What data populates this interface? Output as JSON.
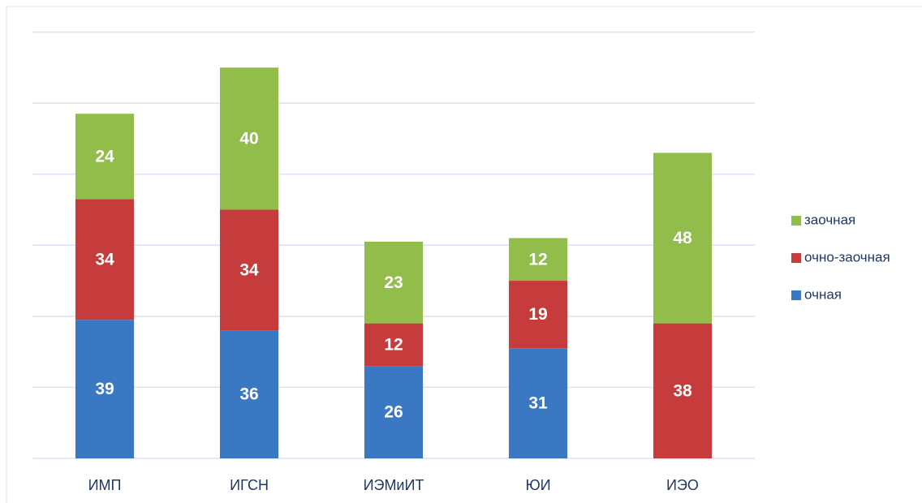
{
  "chart_data": {
    "type": "stacked_bar",
    "categories": [
      "ИМП",
      "ИГСН",
      "ИЭМиИТ",
      "ЮИ",
      "ИЭО"
    ],
    "series": [
      {
        "name": "очная",
        "color": "#3a78c4",
        "values": [
          39,
          36,
          26,
          31,
          null
        ]
      },
      {
        "name": "очно-заочная",
        "color": "#c63c3c",
        "values": [
          34,
          34,
          12,
          19,
          38
        ]
      },
      {
        "name": "заочная",
        "color": "#92bd4a",
        "values": [
          24,
          40,
          23,
          12,
          48
        ]
      }
    ],
    "ylim": [
      0,
      120
    ],
    "yticks": [
      0,
      20,
      40,
      60,
      80,
      100,
      120
    ],
    "grid": true,
    "legend": "right"
  }
}
